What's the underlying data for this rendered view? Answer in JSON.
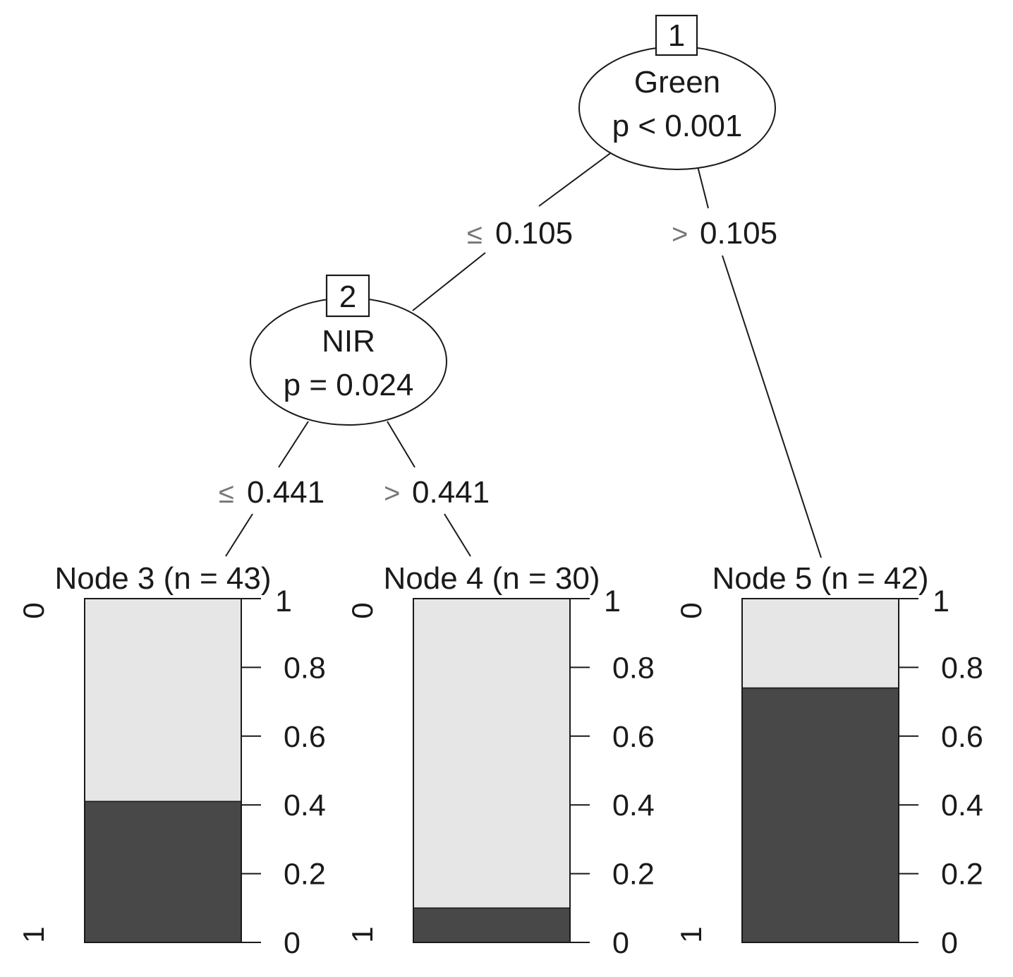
{
  "tree": {
    "inner_nodes": [
      {
        "id": "1",
        "variable": "Green",
        "p_label": "p < 0.001"
      },
      {
        "id": "2",
        "variable": "NIR",
        "p_label": "p = 0.024"
      }
    ],
    "edges": [
      {
        "from": "1",
        "to": "2",
        "symbol": "≤",
        "value": "0.105"
      },
      {
        "from": "1",
        "to": "5",
        "symbol": ">",
        "value": "0.105"
      },
      {
        "from": "2",
        "to": "3",
        "symbol": "≤",
        "value": "0.441"
      },
      {
        "from": "2",
        "to": "4",
        "symbol": ">",
        "value": "0.441"
      }
    ]
  },
  "chart_data": {
    "type": "bar",
    "categories": [
      "Node 3 (n = 43)",
      "Node 4 (n = 30)",
      "Node 5 (n = 42)"
    ],
    "class_labels": [
      "0",
      "1"
    ],
    "series": [
      {
        "name": "1",
        "values": [
          0.41,
          0.1,
          0.74
        ]
      },
      {
        "name": "0",
        "values": [
          0.59,
          0.9,
          0.26
        ]
      }
    ],
    "ylim": [
      0,
      1
    ],
    "yticks": [
      "0",
      "0.2",
      "0.4",
      "0.6",
      "0.8",
      "1"
    ],
    "colors": {
      "class_1": "#484848",
      "class_0": "#e6e6e6"
    }
  }
}
